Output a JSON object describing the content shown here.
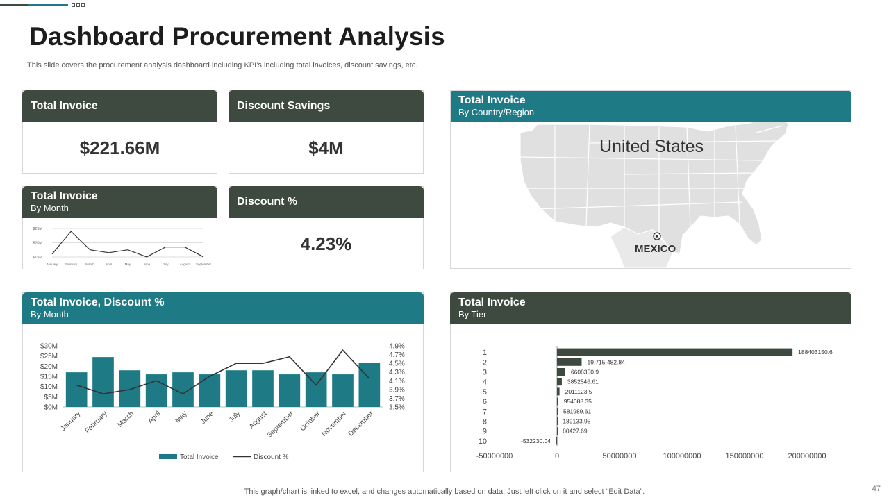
{
  "header": {
    "title": "Dashboard Procurement Analysis",
    "subtitle": "This slide covers the procurement analysis dashboard including KPI’s including total invoices, discount savings, etc."
  },
  "kpis": {
    "total_invoice": {
      "label": "Total Invoice",
      "value": "$221.66M"
    },
    "discount_savings": {
      "label": "Discount Savings",
      "value": "$4M"
    },
    "discount_pct": {
      "label": "Discount %",
      "value": "4.23%"
    }
  },
  "month_card": {
    "title": "Total Invoice",
    "subtitle": "By Month"
  },
  "map_card": {
    "title": "Total Invoice",
    "subtitle": "By Country/Region",
    "country_label": "United States",
    "marker_label": "MEXICO"
  },
  "combo_card": {
    "title": "Total Invoice, Discount %",
    "subtitle": "By Month"
  },
  "tier_card": {
    "title": "Total Invoice",
    "subtitle": "By Tier"
  },
  "footer": {
    "note": "This graph/chart is linked to excel,  and changes automatically based on data. Just left click on it and select “Edit Data”.",
    "page_number": "47"
  },
  "colors": {
    "dark": "#3e4a3f",
    "teal": "#1e7b86"
  },
  "chart_data": [
    {
      "type": "line",
      "id": "mini-month",
      "categories": [
        "January",
        "February",
        "March",
        "April",
        "May",
        "June",
        "July",
        "August",
        "September"
      ],
      "values": [
        16,
        24,
        17.5,
        16.5,
        17.5,
        15,
        18.5,
        18.5,
        15
      ],
      "ytick_labels": [
        "$15M",
        "$20M",
        "$25M"
      ],
      "ylim": [
        14.5,
        25
      ]
    },
    {
      "type": "bar",
      "id": "combo",
      "categories": [
        "January",
        "February",
        "March",
        "April",
        "May",
        "June",
        "July",
        "August",
        "September",
        "October",
        "November",
        "December"
      ],
      "series": [
        {
          "name": "Total Invoice",
          "values": [
            17,
            24.5,
            18,
            16,
            17,
            16,
            18,
            18,
            16,
            17,
            16,
            21.5
          ]
        },
        {
          "name": "Discount %",
          "type": "line",
          "axis": "right",
          "values": [
            4.0,
            3.8,
            3.9,
            4.1,
            3.8,
            4.2,
            4.5,
            4.5,
            4.65,
            4.0,
            4.8,
            4.15
          ]
        }
      ],
      "ytick_labels": [
        "$0M",
        "$5M",
        "$10M",
        "$15M",
        "$20M",
        "$25M",
        "$30M"
      ],
      "ylim": [
        0,
        30
      ],
      "y2tick_labels": [
        "3.5%",
        "3.7%",
        "3.9%",
        "4.1%",
        "4.3%",
        "4.5%",
        "4.7%",
        "4.9%"
      ],
      "y2lim": [
        3.5,
        4.9
      ],
      "legend": "bottom"
    },
    {
      "type": "bar",
      "orientation": "horizontal",
      "id": "tier",
      "categories": [
        "1",
        "2",
        "3",
        "4",
        "5",
        "6",
        "7",
        "8",
        "9",
        "10"
      ],
      "values": [
        188403150.6,
        19715482.84,
        6608350.9,
        3852546.61,
        2011123.5,
        954088.35,
        581989.61,
        189133.95,
        80427.69,
        -532230.04
      ],
      "value_labels": [
        "188403150.6",
        "19,715,482.84",
        "6608350.9",
        "3852546.61",
        "2011123.5",
        "954088.35",
        "581989.61",
        "189133.95",
        "80427.69",
        "-532230.04"
      ],
      "xtick_labels": [
        "-50000000",
        "0",
        "50000000",
        "100000000",
        "150000000",
        "200000000"
      ],
      "xlim": [
        -50000000,
        200000000
      ]
    }
  ]
}
